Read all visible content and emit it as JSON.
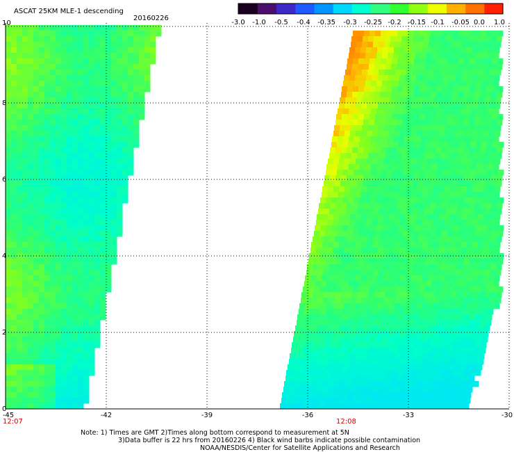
{
  "header": {
    "title": "ASCAT 25KM MLE-1 descending",
    "date": "20160226"
  },
  "colorbar": {
    "ticks": [
      "-3.0",
      "-1.0",
      "-0.5",
      "-0.4",
      "-0.35",
      "-0.3",
      "-0.25",
      "-0.2",
      "-0.15",
      "-0.1",
      "-0.05",
      "0.0",
      "1.0"
    ],
    "colors": [
      "#1a0020",
      "#4b0f6e",
      "#3d28c8",
      "#1e5aff",
      "#0096ff",
      "#00d8ff",
      "#00ffd0",
      "#30ff80",
      "#30ff30",
      "#90ff10",
      "#f0ff00",
      "#ffb000",
      "#ff7000",
      "#ff2000"
    ]
  },
  "axes": {
    "x_ticks": [
      "-45",
      "-42",
      "-39",
      "-36",
      "-33",
      "-30"
    ],
    "y_ticks": [
      "0",
      "2",
      "4",
      "6",
      "8",
      "10"
    ]
  },
  "times": [
    "12:07",
    "12:08"
  ],
  "notes": [
    "Note: 1) Times are GMT 2)Times along bottom correspond to measurement at 5N",
    "3)Data buffer is 22 hrs from 20160226 4) Black wind barbs indicate possible contamination",
    "NOAA/NESDIS/Center for Satellite Applications and Research"
  ],
  "colors": {
    "swath_low": "#30ff80",
    "swath_mid": "#90ff10",
    "swath_high": "#ff7000",
    "accent_time": "#d00000"
  }
}
